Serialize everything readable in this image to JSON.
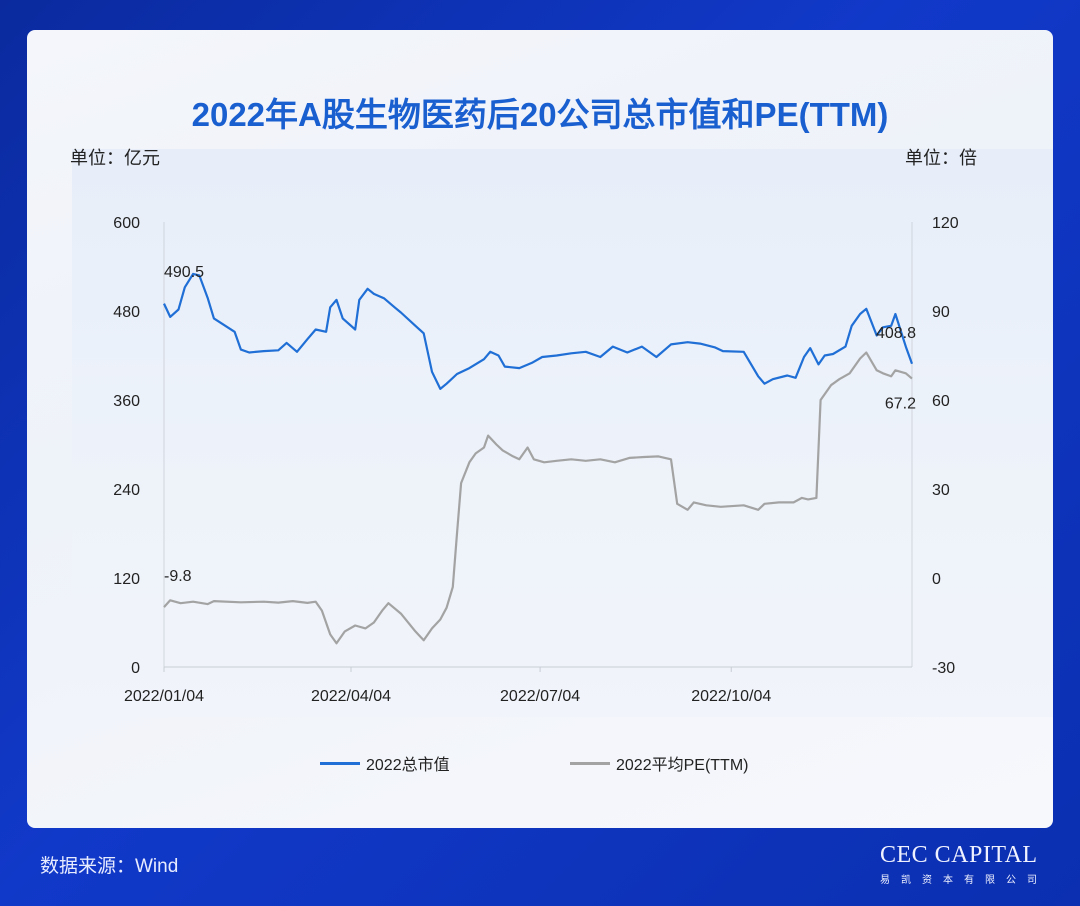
{
  "card": {
    "title": "2022年A股生物医药后20公司总市值和PE(TTM)"
  },
  "units": {
    "left": "单位：亿元",
    "right": "单位：倍"
  },
  "legend": [
    {
      "label": "2022总市值",
      "color": "#1f6fd6"
    },
    {
      "label": "2022平均PE(TTM)",
      "color": "#a3a3a3"
    }
  ],
  "footer": {
    "source": "数据来源：Wind",
    "logo_main": "CEC CAPITAL",
    "logo_sub": "易凯资本有限公司"
  },
  "chart_data": {
    "type": "line",
    "title": "2022年A股生物医药后20公司总市值和PE(TTM)",
    "x_range": [
      "2022/01/04",
      "2022/12/30"
    ],
    "x_ticks": [
      "2022/01/04",
      "2022/04/04",
      "2022/07/04",
      "2022/10/04"
    ],
    "y_left": {
      "label": "单位：亿元",
      "ylim": [
        0,
        600
      ],
      "ticks": [
        0,
        120,
        240,
        360,
        480,
        600
      ]
    },
    "y_right": {
      "label": "单位：倍",
      "ylim": [
        -30,
        120
      ],
      "ticks": [
        -30,
        0,
        30,
        60,
        90,
        120
      ]
    },
    "grid": false,
    "legend_position": "bottom",
    "series": [
      {
        "name": "2022总市值",
        "axis": "left",
        "color": "#1f6fd6",
        "points": [
          [
            "2022/01/04",
            490
          ],
          [
            "2022/01/07",
            472
          ],
          [
            "2022/01/11",
            482
          ],
          [
            "2022/01/14",
            512
          ],
          [
            "2022/01/18",
            530
          ],
          [
            "2022/01/21",
            528
          ],
          [
            "2022/01/25",
            498
          ],
          [
            "2022/01/28",
            470
          ],
          [
            "2022/02/07",
            452
          ],
          [
            "2022/02/10",
            428
          ],
          [
            "2022/02/14",
            424
          ],
          [
            "2022/02/21",
            426
          ],
          [
            "2022/02/28",
            427
          ],
          [
            "2022/03/04",
            437
          ],
          [
            "2022/03/09",
            425
          ],
          [
            "2022/03/14",
            442
          ],
          [
            "2022/03/18",
            455
          ],
          [
            "2022/03/23",
            452
          ],
          [
            "2022/03/25",
            485
          ],
          [
            "2022/03/28",
            495
          ],
          [
            "2022/03/31",
            470
          ],
          [
            "2022/04/06",
            455
          ],
          [
            "2022/04/08",
            495
          ],
          [
            "2022/04/12",
            510
          ],
          [
            "2022/04/15",
            503
          ],
          [
            "2022/04/20",
            497
          ],
          [
            "2022/04/25",
            485
          ],
          [
            "2022/04/28",
            478
          ],
          [
            "2022/05/05",
            460
          ],
          [
            "2022/05/09",
            450
          ],
          [
            "2022/05/13",
            398
          ],
          [
            "2022/05/17",
            375
          ],
          [
            "2022/05/20",
            382
          ],
          [
            "2022/05/25",
            395
          ],
          [
            "2022/05/31",
            403
          ],
          [
            "2022/06/07",
            415
          ],
          [
            "2022/06/10",
            425
          ],
          [
            "2022/06/14",
            420
          ],
          [
            "2022/06/17",
            405
          ],
          [
            "2022/06/24",
            403
          ],
          [
            "2022/06/30",
            410
          ],
          [
            "2022/07/05",
            418
          ],
          [
            "2022/07/12",
            420
          ],
          [
            "2022/07/19",
            423
          ],
          [
            "2022/07/26",
            425
          ],
          [
            "2022/08/02",
            418
          ],
          [
            "2022/08/08",
            432
          ],
          [
            "2022/08/15",
            424
          ],
          [
            "2022/08/22",
            432
          ],
          [
            "2022/08/29",
            418
          ],
          [
            "2022/09/05",
            435
          ],
          [
            "2022/09/13",
            438
          ],
          [
            "2022/09/19",
            436
          ],
          [
            "2022/09/26",
            431
          ],
          [
            "2022/09/30",
            426
          ],
          [
            "2022/10/10",
            425
          ],
          [
            "2022/10/17",
            392
          ],
          [
            "2022/10/20",
            382
          ],
          [
            "2022/10/24",
            388
          ],
          [
            "2022/10/31",
            393
          ],
          [
            "2022/11/04",
            390
          ],
          [
            "2022/11/08",
            418
          ],
          [
            "2022/11/11",
            430
          ],
          [
            "2022/11/15",
            408
          ],
          [
            "2022/11/18",
            420
          ],
          [
            "2022/11/22",
            422
          ],
          [
            "2022/11/28",
            432
          ],
          [
            "2022/12/01",
            460
          ],
          [
            "2022/12/05",
            476
          ],
          [
            "2022/12/08",
            483
          ],
          [
            "2022/12/13",
            447
          ],
          [
            "2022/12/16",
            458
          ],
          [
            "2022/12/20",
            460
          ],
          [
            "2022/12/22",
            476
          ],
          [
            "2022/12/27",
            432
          ],
          [
            "2022/12/30",
            408.8
          ]
        ]
      },
      {
        "name": "2022平均PE(TTM)",
        "axis": "right",
        "color": "#a3a3a3",
        "points": [
          [
            "2022/01/04",
            -9.8
          ],
          [
            "2022/01/07",
            -7.5
          ],
          [
            "2022/01/12",
            -8.5
          ],
          [
            "2022/01/18",
            -8.0
          ],
          [
            "2022/01/25",
            -8.8
          ],
          [
            "2022/01/28",
            -7.8
          ],
          [
            "2022/02/10",
            -8.2
          ],
          [
            "2022/02/21",
            -8.0
          ],
          [
            "2022/02/28",
            -8.3
          ],
          [
            "2022/03/07",
            -7.8
          ],
          [
            "2022/03/14",
            -8.4
          ],
          [
            "2022/03/18",
            -8.0
          ],
          [
            "2022/03/21",
            -11
          ],
          [
            "2022/03/25",
            -19
          ],
          [
            "2022/03/28",
            -22
          ],
          [
            "2022/04/01",
            -18
          ],
          [
            "2022/04/06",
            -16
          ],
          [
            "2022/04/11",
            -17
          ],
          [
            "2022/04/15",
            -15
          ],
          [
            "2022/04/19",
            -11
          ],
          [
            "2022/04/22",
            -8.5
          ],
          [
            "2022/04/28",
            -12
          ],
          [
            "2022/05/05",
            -18
          ],
          [
            "2022/05/09",
            -21
          ],
          [
            "2022/05/13",
            -17
          ],
          [
            "2022/05/17",
            -14
          ],
          [
            "2022/05/20",
            -10
          ],
          [
            "2022/05/23",
            -3
          ],
          [
            "2022/05/25",
            15
          ],
          [
            "2022/05/27",
            32
          ],
          [
            "2022/05/31",
            39
          ],
          [
            "2022/06/03",
            42
          ],
          [
            "2022/06/07",
            44
          ],
          [
            "2022/06/09",
            48
          ],
          [
            "2022/06/13",
            45
          ],
          [
            "2022/06/16",
            43
          ],
          [
            "2022/06/21",
            41
          ],
          [
            "2022/06/24",
            40
          ],
          [
            "2022/06/28",
            44
          ],
          [
            "2022/07/01",
            40
          ],
          [
            "2022/07/06",
            39
          ],
          [
            "2022/07/12",
            39.5
          ],
          [
            "2022/07/19",
            40
          ],
          [
            "2022/07/26",
            39.5
          ],
          [
            "2022/08/02",
            40
          ],
          [
            "2022/08/09",
            39
          ],
          [
            "2022/08/16",
            40.5
          ],
          [
            "2022/08/23",
            40.8
          ],
          [
            "2022/08/30",
            41
          ],
          [
            "2022/09/05",
            40
          ],
          [
            "2022/09/08",
            25
          ],
          [
            "2022/09/13",
            23
          ],
          [
            "2022/09/16",
            25.5
          ],
          [
            "2022/09/22",
            24.5
          ],
          [
            "2022/09/29",
            24
          ],
          [
            "2022/10/10",
            24.5
          ],
          [
            "2022/10/17",
            23
          ],
          [
            "2022/10/20",
            25
          ],
          [
            "2022/10/27",
            25.5
          ],
          [
            "2022/11/03",
            25.5
          ],
          [
            "2022/11/07",
            27
          ],
          [
            "2022/11/10",
            26.5
          ],
          [
            "2022/11/14",
            27
          ],
          [
            "2022/11/16",
            60
          ],
          [
            "2022/11/21",
            65
          ],
          [
            "2022/11/25",
            67
          ],
          [
            "2022/11/30",
            69
          ],
          [
            "2022/12/05",
            74
          ],
          [
            "2022/12/08",
            76
          ],
          [
            "2022/12/13",
            70
          ],
          [
            "2022/12/16",
            69
          ],
          [
            "2022/12/20",
            68
          ],
          [
            "2022/12/22",
            70
          ],
          [
            "2022/12/27",
            69
          ],
          [
            "2022/12/30",
            67.2
          ]
        ]
      }
    ],
    "annotations": [
      {
        "text": "490.5",
        "series": "2022总市值",
        "x": "2022/01/04",
        "y": 490.5,
        "position": "above"
      },
      {
        "text": "408.8",
        "series": "2022总市值",
        "x": "2022/12/30",
        "y": 408.8,
        "position": "above"
      },
      {
        "text": "-9.8",
        "series": "2022平均PE(TTM)",
        "x": "2022/01/04",
        "y": -9.8,
        "position": "above"
      },
      {
        "text": "67.2",
        "series": "2022平均PE(TTM)",
        "x": "2022/12/30",
        "y": 67.2,
        "position": "below"
      }
    ]
  }
}
